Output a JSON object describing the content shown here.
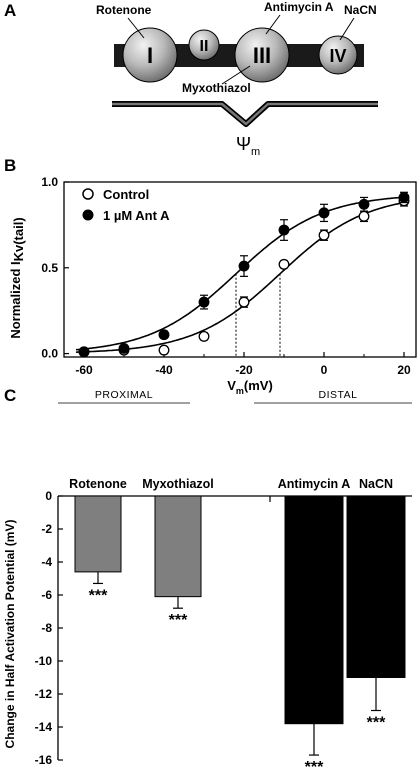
{
  "panels": {
    "a": "A",
    "b": "B",
    "c": "C"
  },
  "diagram": {
    "complexes": [
      "I",
      "II",
      "III",
      "IV"
    ],
    "inhibitors": {
      "rotenone": "Rotenone",
      "antimycin": "Antimycin A",
      "nacn": "NaCN",
      "myxothiazol": "Myxothiazol"
    },
    "psi": "Ψ",
    "psi_sub": "m"
  },
  "chart_data": [
    {
      "type": "scatter",
      "legend_position": "top-left",
      "xlabel": "V",
      "xlabel_sub": "m",
      "xlabel_unit": "(mV)",
      "ylabel": "Normalized I",
      "ylabel_sub": "Kv(tail)",
      "xlim": [
        -65,
        23
      ],
      "ylim": [
        -0.02,
        1.0
      ],
      "xticks": [
        -60,
        -40,
        -20,
        0,
        20
      ],
      "xticks_minor": [
        -50,
        -30,
        -10,
        10
      ],
      "yticks": [
        0.0,
        0.5,
        1.0
      ],
      "ytick_labels": [
        "0.0",
        "0.5",
        "1.0"
      ],
      "series": [
        {
          "name": "Control",
          "marker": "open-circle",
          "x": [
            -60,
            -50,
            -40,
            -30,
            -20,
            -10,
            0,
            10,
            20
          ],
          "y": [
            0.01,
            0.02,
            0.02,
            0.1,
            0.3,
            0.52,
            0.69,
            0.8,
            0.89
          ],
          "err": [
            0.01,
            0.01,
            0.02,
            0.02,
            0.03,
            0.02,
            0.03,
            0.03,
            0.03
          ],
          "v_half": -11,
          "slope": 10.8
        },
        {
          "name": "1 µM Ant A",
          "marker": "filled-circle",
          "x": [
            -60,
            -50,
            -40,
            -30,
            -20,
            -10,
            0,
            10,
            20
          ],
          "y": [
            0.01,
            0.03,
            0.11,
            0.3,
            0.51,
            0.72,
            0.82,
            0.87,
            0.91
          ],
          "err": [
            0.01,
            0.01,
            0.02,
            0.04,
            0.06,
            0.06,
            0.05,
            0.04,
            0.03
          ],
          "v_half": -22,
          "slope": 10.8
        }
      ],
      "dashed_markers_x": [
        -22,
        -11
      ]
    },
    {
      "type": "bar",
      "ylabel": "Change in Half Activation Potential  (mV)",
      "ylim": [
        -16,
        0
      ],
      "yticks": [
        0,
        -2,
        -4,
        -6,
        -8,
        -10,
        -12,
        -14,
        -16
      ],
      "groups": [
        {
          "name": "PROXIMAL",
          "color": "#7f7f7f",
          "categories": [
            "Rotenone",
            "Myxothiazol"
          ],
          "values": [
            -4.6,
            -6.1
          ],
          "err": [
            0.7,
            0.7
          ]
        },
        {
          "name": "DISTAL",
          "color": "#000000",
          "categories": [
            "Antimycin A",
            "NaCN"
          ],
          "values": [
            -13.8,
            -11.0
          ],
          "err": [
            1.9,
            2.0
          ]
        }
      ],
      "significance": "***"
    }
  ]
}
